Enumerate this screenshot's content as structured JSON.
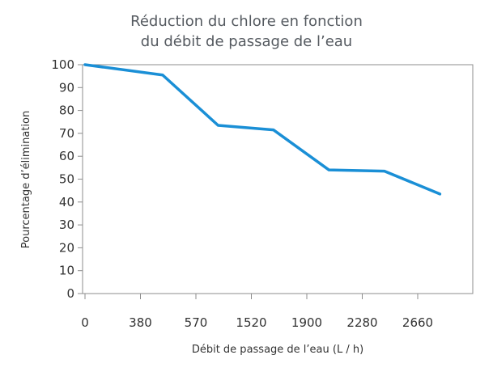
{
  "chart_data": {
    "type": "line",
    "title_line1": "Réduction du chlore en fonction",
    "title_line2": "du débit de passage de l’eau",
    "xlabel": "Débit de passage de l’eau (L / h)",
    "ylabel": "Pourcentage d’élimination",
    "x_tick_labels": [
      "0",
      "380",
      "570",
      "1520",
      "1900",
      "2280",
      "2660"
    ],
    "y_tick_labels": [
      "0",
      "10",
      "20",
      "30",
      "40",
      "50",
      "60",
      "70",
      "80",
      "90",
      "100"
    ],
    "ylim": [
      0,
      100
    ],
    "grid": false,
    "line_color": "#1a8fd6",
    "series": [
      {
        "x_position_index": [
          0,
          1.4,
          2.4,
          3.4,
          4.4,
          5.4,
          6.4
        ],
        "values": [
          100,
          95.5,
          73.5,
          71.5,
          54,
          53.5,
          43.5
        ]
      }
    ]
  }
}
